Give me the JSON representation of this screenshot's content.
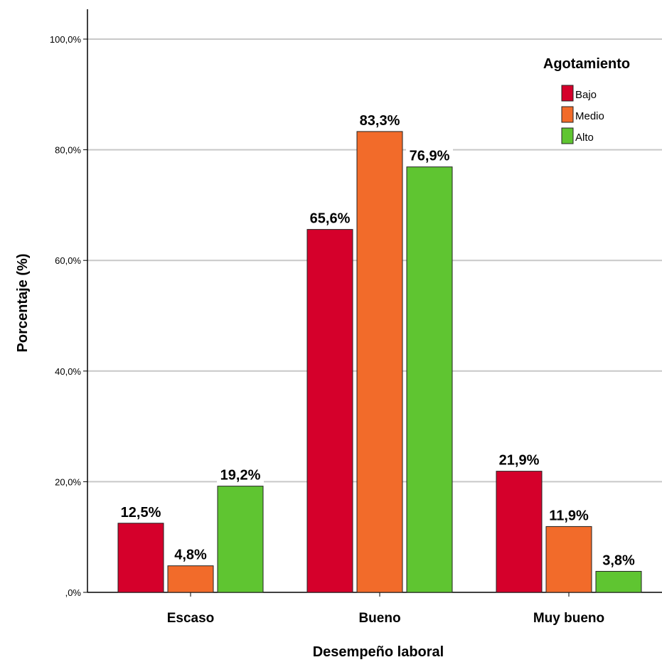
{
  "chart_data": {
    "type": "bar",
    "xlabel": "Desempeño laboral",
    "ylabel": "Porcentaje (%)",
    "categories": [
      "Escaso",
      "Bueno",
      "Muy bueno"
    ],
    "ylim": [
      0,
      100
    ],
    "yticks": [
      0,
      20,
      40,
      60,
      80,
      100
    ],
    "ytick_labels": [
      ",0%",
      "20,0%",
      "40,0%",
      "60,0%",
      "80,0%",
      "100,0%"
    ],
    "grid": true,
    "legend": {
      "title": "Agotamiento",
      "placement": "top-right"
    },
    "series": [
      {
        "name": "Bajo",
        "color": "#d5002b",
        "values": [
          12.5,
          65.6,
          21.9
        ],
        "labels": [
          "12,5%",
          "65,6%",
          "21,9%"
        ]
      },
      {
        "name": "Medio",
        "color": "#f26b2a",
        "values": [
          4.8,
          83.3,
          11.9
        ],
        "labels": [
          "4,8%",
          "83,3%",
          "11,9%"
        ]
      },
      {
        "name": "Alto",
        "color": "#5fc531",
        "values": [
          19.2,
          76.9,
          3.8
        ],
        "labels": [
          "19,2%",
          "76,9%",
          "3,8%"
        ]
      }
    ]
  }
}
